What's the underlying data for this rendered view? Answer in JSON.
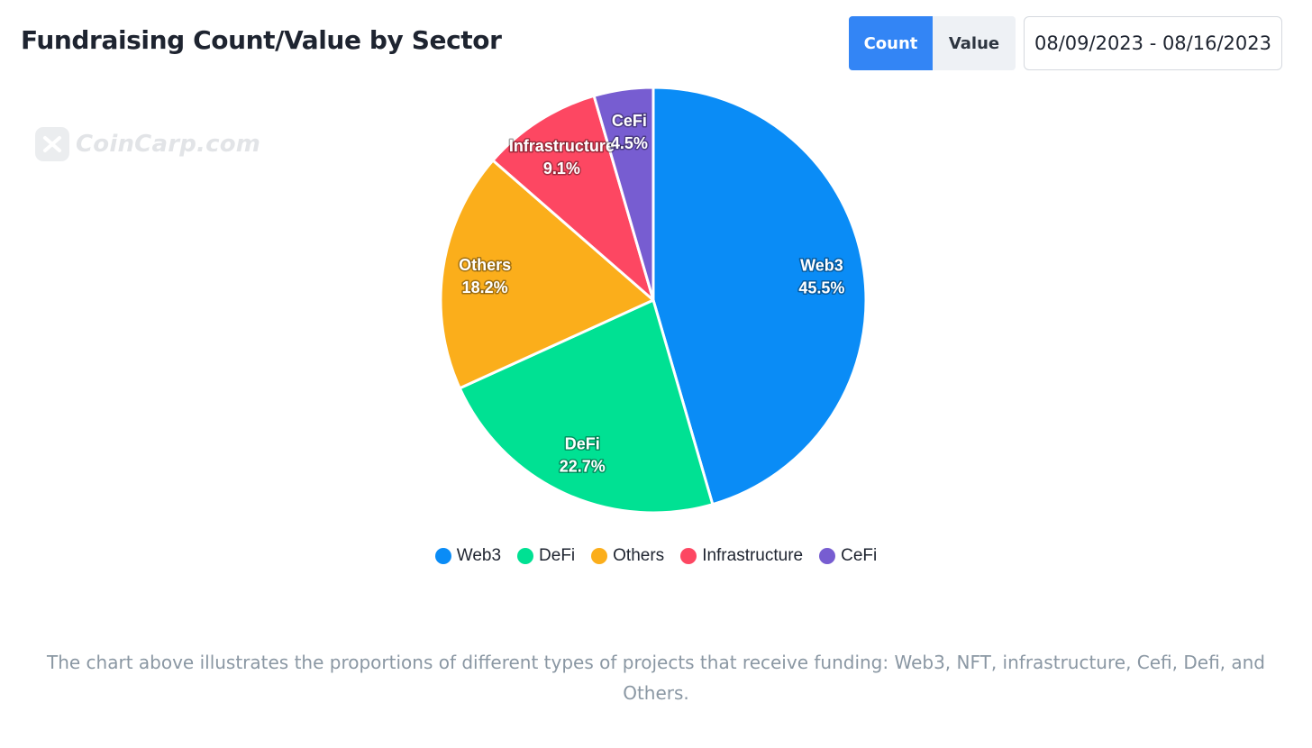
{
  "header": {
    "title": "Fundraising Count/Value by Sector",
    "toggle": {
      "count_label": "Count",
      "value_label": "Value",
      "active": "Count"
    },
    "date_range": "08/09/2023 - 08/16/2023"
  },
  "watermark": {
    "text": "CoinCarp.com"
  },
  "chart_data": {
    "type": "pie",
    "slices": [
      {
        "label": "Web3",
        "value": 45.5,
        "display": "45.5%",
        "color": "#0a8cf6"
      },
      {
        "label": "DeFi",
        "value": 22.7,
        "display": "22.7%",
        "color": "#00e193"
      },
      {
        "label": "Others",
        "value": 18.2,
        "display": "18.2%",
        "color": "#fbae1b"
      },
      {
        "label": "Infrastructure",
        "value": 9.1,
        "display": "9.1%",
        "color": "#fd4762"
      },
      {
        "label": "CeFi",
        "value": 4.5,
        "display": "4.5%",
        "color": "#775dd1"
      }
    ],
    "legend_position": "bottom"
  },
  "caption": "The chart above illustrates the proportions of different types of projects that receive funding: Web3, NFT, infrastructure, Cefi, Defi, and Others."
}
